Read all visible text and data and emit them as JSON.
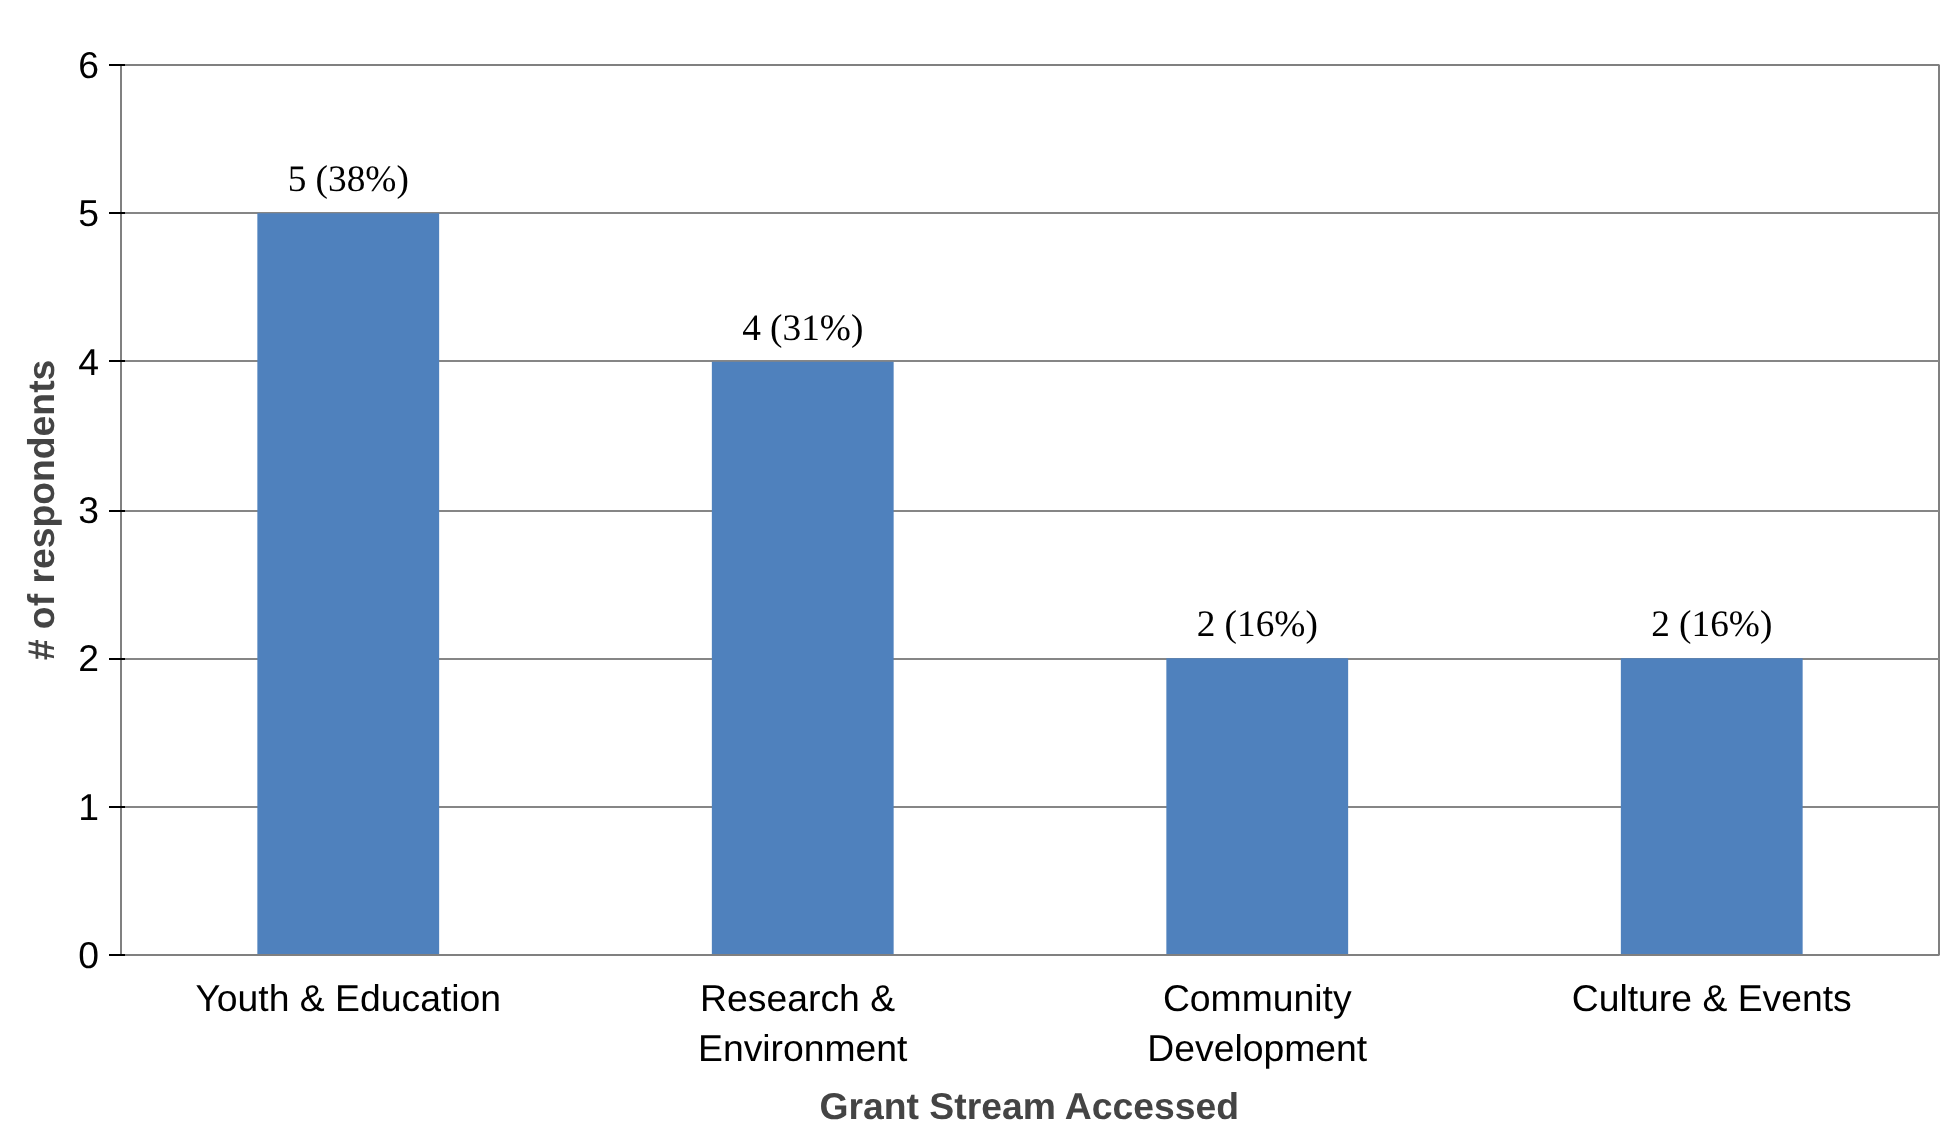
{
  "chart_data": {
    "type": "bar",
    "xlabel": "Grant Stream Accessed",
    "ylabel": "# of respondents",
    "categories": [
      "Youth & Education",
      "Research  &\nEnvironment",
      "Community\nDevelopment",
      "Culture & Events"
    ],
    "values": [
      5,
      4,
      2,
      2
    ],
    "color": "#4f81bd",
    "value_labels": [
      "5 (38%)",
      "4 (31%)",
      "2 (16%)",
      "2 (16%)"
    ],
    "ylim": [
      0,
      6
    ],
    "yticks": [
      0,
      1,
      2,
      3,
      4,
      5,
      6
    ],
    "grid": "y"
  }
}
